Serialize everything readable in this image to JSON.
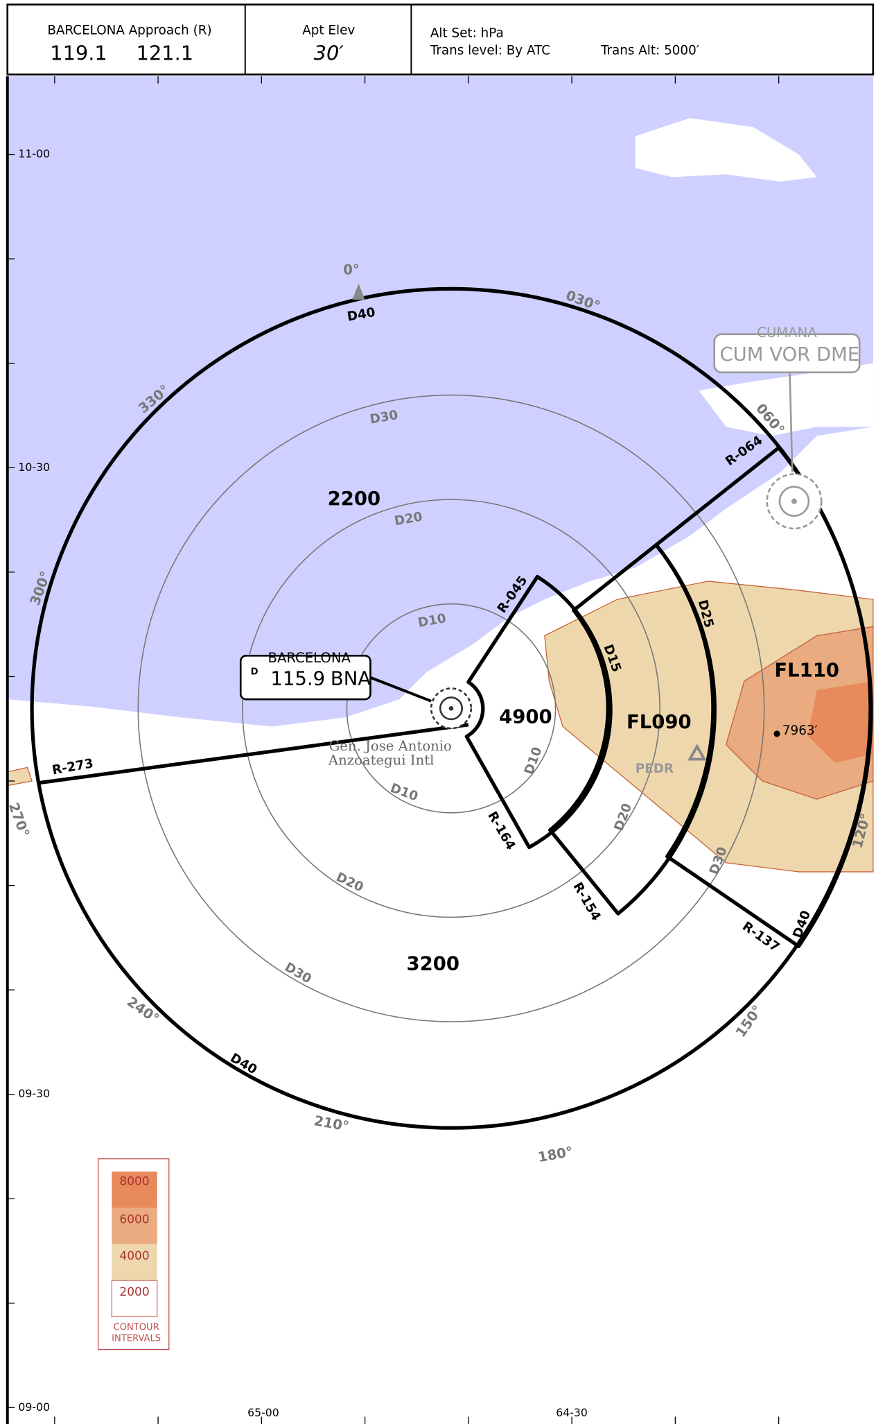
{
  "header": {
    "approach": "BARCELONA Approach (R)",
    "frequencies": [
      "119.1",
      "121.1"
    ],
    "elevation_label": "Apt Elev",
    "elevation": "30′",
    "alt_set": "Alt Set: hPa",
    "trans_level": "Trans level: By ATC",
    "trans_alt": "Trans Alt: 5000′"
  },
  "grid_labels": {
    "latitudes": [
      "11-00",
      "10-30",
      "09-30",
      "09-00"
    ],
    "longitudes": [
      "65-00",
      "64-30"
    ]
  },
  "bearings": [
    "0°",
    "030°",
    "060°",
    "120°",
    "150°",
    "180°",
    "210°",
    "240°",
    "270°",
    "300°",
    "330°"
  ],
  "distance_labels": [
    "D10",
    "D10",
    "D10",
    "D15",
    "D20",
    "D20",
    "D20",
    "D25",
    "D30",
    "D30",
    "D30",
    "D40",
    "D40",
    "D40"
  ],
  "radials": [
    "R-273",
    "R-064",
    "R-045",
    "R-164",
    "R-154",
    "R-137"
  ],
  "sector_altitudes": [
    "2200",
    "4900",
    "FL090",
    "FL110",
    "3200"
  ],
  "navaids": [
    {
      "name": "BARCELONA",
      "frequency": "115.9",
      "ident": "BNA",
      "dme": "D"
    },
    {
      "name": "CUMANA",
      "ident": "CUM VOR DME"
    }
  ],
  "airport": [
    "Gen. Jose Antonio",
    "Anzoategui Intl"
  ],
  "places": [
    "PEDR"
  ],
  "spot_elevation": "7963′",
  "legend": {
    "intervals": [
      "8000",
      "6000",
      "4000",
      "2000"
    ],
    "title": [
      "CONTOUR",
      "INTERVALS"
    ]
  }
}
